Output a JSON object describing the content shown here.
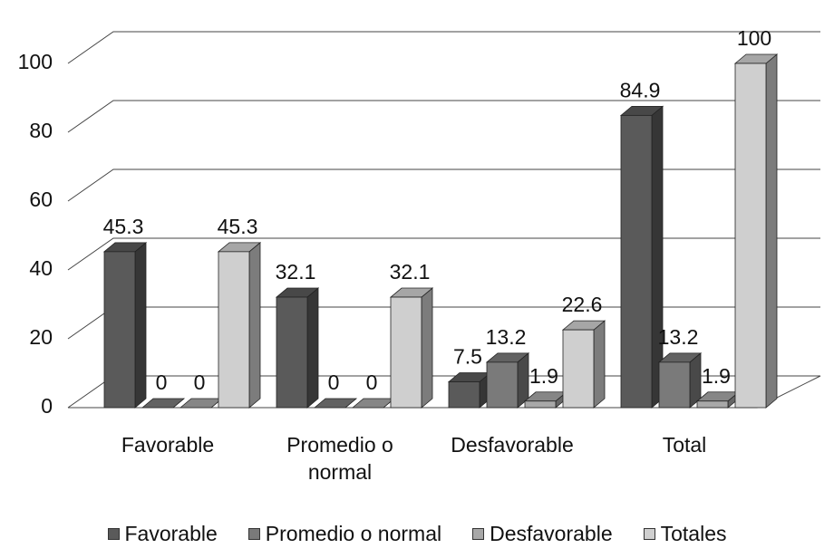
{
  "chart_data": {
    "type": "bar3d",
    "categories": [
      "Favorable",
      "Promedio o normal",
      "Desfavorable",
      "Total"
    ],
    "series": [
      {
        "name": "Favorable",
        "color": "#5a5a5a",
        "values": [
          45.3,
          32.1,
          7.5,
          84.9
        ]
      },
      {
        "name": "Promedio o normal",
        "color": "#7a7a7a",
        "values": [
          0,
          0,
          13.2,
          13.2
        ]
      },
      {
        "name": "Desfavorable",
        "color": "#a8a8a8",
        "values": [
          0,
          0,
          1.9,
          1.9
        ]
      },
      {
        "name": "Totales",
        "color": "#cfcfcf",
        "values": [
          45.3,
          32.1,
          22.6,
          100
        ]
      }
    ],
    "ylim": [
      0,
      100
    ],
    "yticks": [
      0,
      20,
      40,
      60,
      80,
      100
    ],
    "grid": true,
    "legend": "bottom"
  }
}
